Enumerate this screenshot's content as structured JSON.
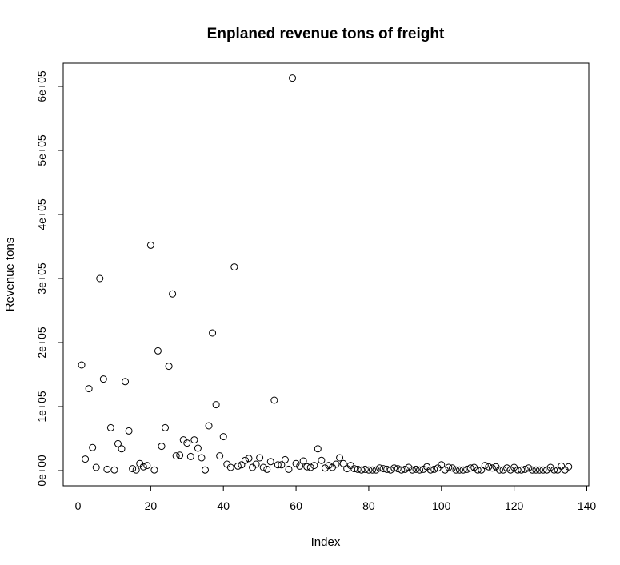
{
  "chart_data": {
    "type": "scatter",
    "title": "Enplaned revenue tons of freight",
    "xlabel": "Index",
    "ylabel": "Revenue tons",
    "xlim": [
      0,
      140
    ],
    "ylim": [
      0,
      620000
    ],
    "x_ticks": [
      0,
      20,
      40,
      60,
      80,
      100,
      120,
      140
    ],
    "x_tick_labels": [
      "0",
      "20",
      "40",
      "60",
      "80",
      "100",
      "120",
      "140"
    ],
    "y_ticks": [
      0,
      100000,
      200000,
      300000,
      400000,
      500000,
      600000
    ],
    "y_tick_labels": [
      "0e+00",
      "1e+05",
      "2e+05",
      "3e+05",
      "4e+05",
      "5e+05",
      "6e+05"
    ],
    "grid": false,
    "legend": "none",
    "series": [
      {
        "x": [
          1,
          2,
          3,
          4,
          5,
          6,
          7,
          8,
          9,
          10,
          11,
          12,
          13,
          14,
          15,
          16,
          17,
          18,
          19,
          20,
          21,
          22,
          23,
          24,
          25,
          26,
          27,
          28,
          29,
          30,
          31,
          32,
          33,
          34,
          35,
          36,
          37,
          38,
          39,
          40,
          41,
          42,
          43,
          44,
          45,
          46,
          47,
          48,
          49,
          50,
          51,
          52,
          53,
          54,
          55,
          56,
          57,
          58,
          59,
          60,
          61,
          62,
          63,
          64,
          65,
          66,
          67,
          68,
          69,
          70,
          71,
          72,
          73,
          74,
          75,
          76,
          77,
          78,
          79,
          80,
          81,
          82,
          83,
          84,
          85,
          86,
          87,
          88,
          89,
          90,
          91,
          92,
          93,
          94,
          95,
          96,
          97,
          98,
          99,
          100,
          101,
          102,
          103,
          104,
          105,
          106,
          107,
          108,
          109,
          110,
          111,
          112,
          113,
          114,
          115,
          116,
          117,
          118,
          119,
          120,
          121,
          122,
          123,
          124,
          125,
          126,
          127,
          128,
          129,
          130,
          131,
          132,
          133,
          134,
          135
        ],
        "values": [
          165000,
          18000,
          128000,
          36000,
          5000,
          300000,
          143000,
          2000,
          67000,
          1000,
          42000,
          34000,
          139000,
          62000,
          3000,
          1000,
          11000,
          6000,
          8000,
          352000,
          1000,
          187000,
          38000,
          67000,
          163000,
          276000,
          23000,
          24000,
          48000,
          43000,
          22000,
          48000,
          35000,
          20000,
          1000,
          70000,
          215000,
          103000,
          23000,
          53000,
          10000,
          5000,
          318000,
          7000,
          9000,
          16000,
          19000,
          5000,
          10000,
          20000,
          5000,
          2000,
          14000,
          110000,
          9000,
          9000,
          17000,
          2000,
          613000,
          11000,
          7000,
          15000,
          6000,
          5000,
          8000,
          34000,
          16000,
          4000,
          8000,
          5000,
          10000,
          20000,
          11000,
          3000,
          8000,
          3000,
          2000,
          1000,
          2000,
          1000,
          1000,
          1000,
          4000,
          3000,
          2000,
          1000,
          4000,
          3000,
          1000,
          2000,
          5000,
          1000,
          2000,
          1000,
          2000,
          6000,
          1000,
          2000,
          4000,
          9000,
          1000,
          5000,
          4000,
          1000,
          1000,
          1000,
          2000,
          4000,
          5000,
          1000,
          1000,
          8000,
          6000,
          4000,
          6000,
          1000,
          1000,
          4000,
          1000,
          5000,
          1000,
          1000,
          2000,
          4000,
          1000,
          1000,
          1000,
          1000,
          1000,
          5000,
          1000,
          1000,
          7000,
          1000,
          6000
        ]
      }
    ]
  }
}
